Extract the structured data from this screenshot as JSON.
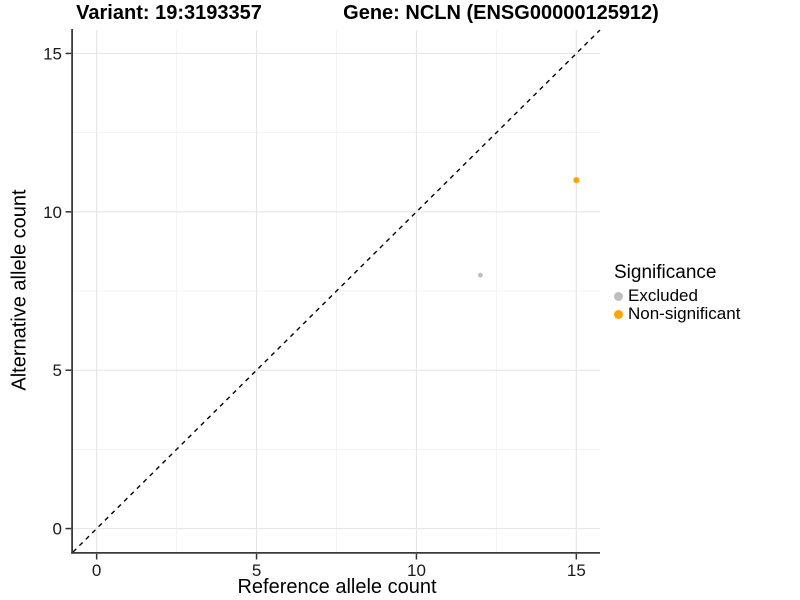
{
  "figure": {
    "variant_title": "Variant: 19:3193357",
    "gene_title": "Gene: NCLN (ENSG00000125912)"
  },
  "legend": {
    "title": "Significance",
    "items": [
      {
        "label": "Excluded",
        "color": "#bebebe"
      },
      {
        "label": "Non-significant",
        "color": "#ffa500"
      }
    ]
  },
  "chart_data": {
    "type": "scatter",
    "title_left": "Variant: 19:3193357",
    "title_right": "Gene: NCLN (ENSG00000125912)",
    "xlabel": "Reference allele count",
    "ylabel": "Alternative allele count",
    "xlim": [
      -0.74,
      15.74
    ],
    "ylim": [
      -0.74,
      15.74
    ],
    "xticks": [
      0,
      5,
      10,
      15
    ],
    "yticks": [
      0,
      5,
      10,
      15
    ],
    "minor_ticks": [
      2.5,
      7.5,
      12.5
    ],
    "grid": "major+minor",
    "legend_position": "right",
    "reference_line": {
      "type": "y=x",
      "style": "dashed",
      "color": "#000000"
    },
    "series": [
      {
        "name": "Excluded",
        "color": "#bebebe",
        "radius_px": 2.4,
        "points": [
          {
            "x": 12,
            "y": 8
          }
        ]
      },
      {
        "name": "Non-significant",
        "color": "#ffa500",
        "radius_px": 3.1,
        "points": [
          {
            "x": 15,
            "y": 11
          }
        ]
      }
    ]
  },
  "styles": {
    "grid_major": "#e7e7e7",
    "grid_minor": "#f3f3f3",
    "axis_line": "#3a3a3a",
    "tick_color": "#333333",
    "tick_label_color": "#1a1a1a"
  }
}
